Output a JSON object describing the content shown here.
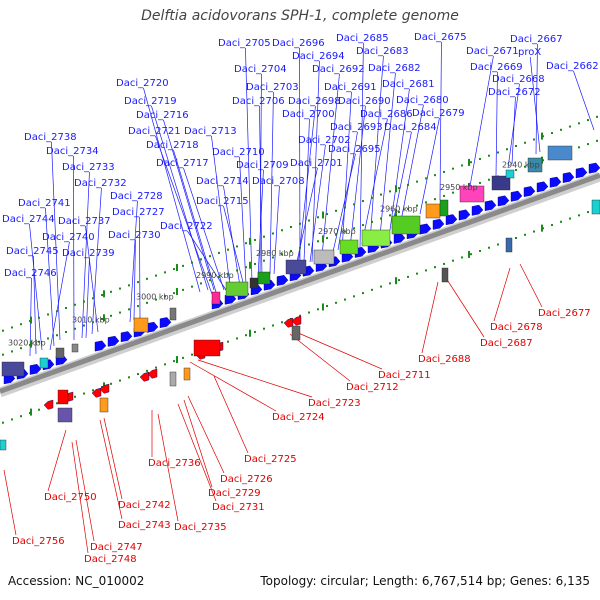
{
  "title": "Delftia acidovorans SPH-1, complete genome",
  "footer": {
    "accession": "Accession: NC_010002",
    "summary": "Topology: circular; Length: 6,767,514 bp; Genes: 6,135"
  },
  "colors": {
    "forward_label": "#1a1aff",
    "reverse_label": "#e00000",
    "backbone": "#8a8a8a",
    "forward_gene": "#0a0aff",
    "reverse_gene": "#ff0000",
    "tick": "#1a8a1a"
  },
  "kbp_labels": [
    "2940 kbp",
    "2950 kbp",
    "2960 kbp",
    "2970 kbp",
    "2980 kbp",
    "2990 kbp",
    "3000 kbp",
    "3010 kbp",
    "3020 kbp"
  ],
  "forward_labels": [
    "Daci_2705",
    "Daci_2696",
    "Daci_2685",
    "Daci_2675",
    "Daci_2667",
    "Daci_2694",
    "Daci_2683",
    "Daci_2671",
    "proX",
    "Daci_2662",
    "Daci_2704",
    "Daci_2692",
    "Daci_2682",
    "Daci_2669",
    "Daci_2720",
    "Daci_2703",
    "Daci_2691",
    "Daci_2681",
    "Daci_2668",
    "Daci_2719",
    "Daci_2706",
    "Daci_2698",
    "Daci_2690",
    "Daci_2680",
    "Daci_2672",
    "Daci_2716",
    "Daci_2700",
    "Daci_2686",
    "Daci_2679",
    "Daci_2721",
    "Daci_2713",
    "Daci_2693",
    "Daci_2684",
    "Daci_2738",
    "Daci_2718",
    "Daci_2702",
    "Daci_2734",
    "Daci_2710",
    "Daci_2695",
    "Daci_2717",
    "Daci_2709",
    "Daci_2701",
    "Daci_2733",
    "Daci_2714",
    "Daci_2708",
    "Daci_2732",
    "Daci_2728",
    "Daci_2741",
    "Daci_2715",
    "Daci_2727",
    "Daci_2744",
    "Daci_2737",
    "Daci_2722",
    "Daci_2740",
    "Daci_2730",
    "Daci_2745",
    "Daci_2739",
    "Daci_2746"
  ],
  "reverse_labels": [
    "Daci_2677",
    "Daci_2678",
    "Daci_2687",
    "Daci_2688",
    "Daci_2711",
    "Daci_2712",
    "Daci_2723",
    "Daci_2724",
    "Daci_2725",
    "Daci_2736",
    "Daci_2726",
    "Daci_2729",
    "Daci_2731",
    "Daci_2735",
    "Daci_2742",
    "Daci_2743",
    "Daci_2750",
    "Daci_2747",
    "Daci_2748",
    "Daci_2756"
  ]
}
